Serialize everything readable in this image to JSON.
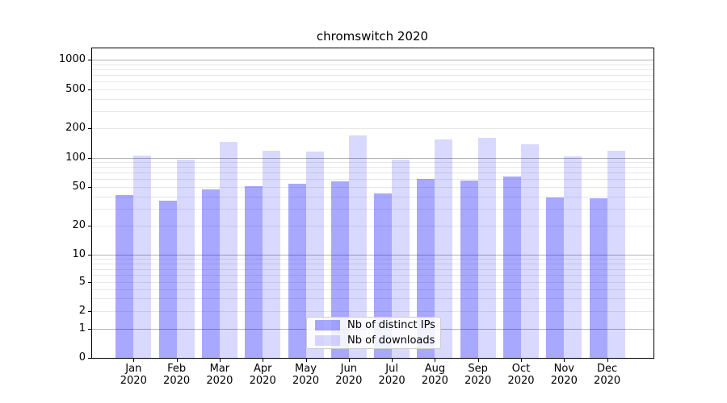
{
  "chart_data": {
    "type": "bar",
    "title": "chromswitch 2020",
    "months": [
      "Jan",
      "Feb",
      "Mar",
      "Apr",
      "May",
      "Jun",
      "Jul",
      "Aug",
      "Sep",
      "Oct",
      "Nov",
      "Dec"
    ],
    "year_label": "2020",
    "series": [
      {
        "name": "Nb of distinct IPs",
        "color": "rgba(0,0,255,0.34)",
        "color_hex_on_white": "#a8a8ff",
        "values": [
          41,
          36,
          47,
          51,
          54,
          57,
          43,
          60,
          58,
          64,
          39,
          38
        ]
      },
      {
        "name": "Nb of downloads",
        "color": "rgba(0,0,255,0.15)",
        "color_hex_on_white": "#d9d9ff",
        "values": [
          105,
          96,
          146,
          119,
          116,
          169,
          95,
          153,
          160,
          137,
          104,
          119
        ]
      }
    ],
    "yscale": "symlog",
    "ylim": [
      0,
      1300
    ],
    "yticks": [
      0,
      1,
      2,
      5,
      10,
      20,
      50,
      100,
      200,
      500,
      1000
    ],
    "grid": true,
    "legend_position": "lower center",
    "colors": {
      "grid_major": "#b2b2b2",
      "grid_minor": "#e8e8e8",
      "spine": "#000000",
      "background": "#ffffff"
    }
  }
}
